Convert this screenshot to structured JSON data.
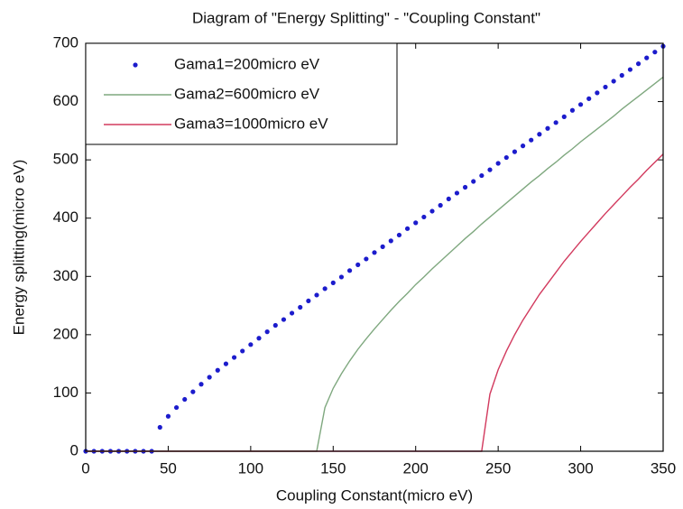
{
  "chart_data": {
    "type": "line",
    "title": "Diagram of \"Energy Splitting\" - \"Coupling Constant\"",
    "x_label": "Coupling Constant(micro eV)",
    "y_label": "Energy splitting(micro eV)",
    "x": [
      0,
      5,
      10,
      15,
      20,
      25,
      30,
      35,
      40,
      45,
      50,
      55,
      60,
      65,
      70,
      75,
      80,
      85,
      90,
      95,
      100,
      105,
      110,
      115,
      120,
      125,
      130,
      135,
      140,
      145,
      150,
      155,
      160,
      165,
      170,
      175,
      180,
      185,
      190,
      195,
      200,
      205,
      210,
      215,
      220,
      225,
      230,
      235,
      240,
      245,
      250,
      255,
      260,
      265,
      270,
      275,
      280,
      285,
      290,
      295,
      300,
      305,
      310,
      315,
      320,
      325,
      330,
      335,
      340,
      345,
      350
    ],
    "series": [
      {
        "name": "Gama1=200micro eV",
        "color": "#1c1ccc",
        "style": "markers",
        "values": [
          0,
          0,
          0,
          0,
          0,
          0,
          0,
          0,
          0,
          41,
          60,
          75,
          89,
          102,
          115,
          127,
          139,
          150,
          161,
          172,
          183,
          194,
          205,
          216,
          226,
          237,
          247,
          258,
          268,
          279,
          289,
          299,
          310,
          320,
          330,
          341,
          351,
          361,
          371,
          382,
          392,
          402,
          412,
          422,
          433,
          443,
          453,
          463,
          473,
          483,
          494,
          504,
          514,
          524,
          534,
          544,
          554,
          564,
          574,
          585,
          595,
          605,
          615,
          625,
          635,
          645,
          655,
          665,
          675,
          685,
          695
        ]
      },
      {
        "name": "Gama2=600micro eV",
        "color": "#7fa87f",
        "style": "line",
        "values": [
          0,
          0,
          0,
          0,
          0,
          0,
          0,
          0,
          0,
          0,
          0,
          0,
          0,
          0,
          0,
          0,
          0,
          0,
          0,
          0,
          0,
          0,
          0,
          0,
          0,
          0,
          0,
          0,
          0,
          75,
          108,
          133,
          155,
          175,
          193,
          210,
          226,
          242,
          257,
          271,
          286,
          299,
          313,
          326,
          339,
          352,
          365,
          377,
          390,
          402,
          414,
          426,
          438,
          450,
          462,
          473,
          485,
          496,
          508,
          519,
          531,
          542,
          553,
          564,
          575,
          587,
          598,
          609,
          620,
          631,
          642
        ]
      },
      {
        "name": "Gama3=1000micro eV",
        "color": "#d23a5e",
        "style": "line",
        "values": [
          0,
          0,
          0,
          0,
          0,
          0,
          0,
          0,
          0,
          0,
          0,
          0,
          0,
          0,
          0,
          0,
          0,
          0,
          0,
          0,
          0,
          0,
          0,
          0,
          0,
          0,
          0,
          0,
          0,
          0,
          0,
          0,
          0,
          0,
          0,
          0,
          0,
          0,
          0,
          0,
          0,
          0,
          0,
          0,
          0,
          0,
          0,
          0,
          0,
          98,
          140,
          172,
          200,
          225,
          247,
          269,
          288,
          307,
          326,
          343,
          360,
          376,
          392,
          408,
          423,
          438,
          453,
          467,
          482,
          496,
          510
        ]
      }
    ],
    "xlim": [
      0,
      350
    ],
    "ylim": [
      0,
      700
    ],
    "xticks": [
      0,
      50,
      100,
      150,
      200,
      250,
      300,
      350
    ],
    "yticks": [
      0,
      100,
      200,
      300,
      400,
      500,
      600,
      700
    ],
    "grid": false,
    "legend": "upper left"
  }
}
